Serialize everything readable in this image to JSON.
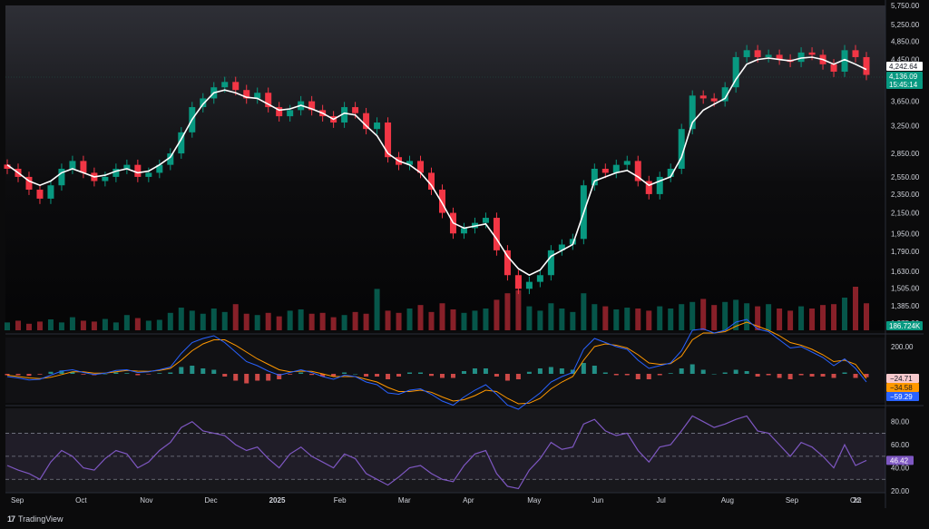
{
  "chart_data": [
    {
      "panel": "price",
      "type": "candlestick",
      "x_labels": [
        "Sep",
        "Oct",
        "Nov",
        "Dec",
        "2025",
        "Feb",
        "Mar",
        "Apr",
        "May",
        "Jun",
        "Jul",
        "Aug",
        "Sep",
        "Oct",
        "22"
      ],
      "y_scale": "log",
      "y_ticks": [
        "5,750.00",
        "5,250.00",
        "4,850.00",
        "4,450.00",
        "3,650.00",
        "3,250.00",
        "2,850.00",
        "2,550.00",
        "2,350.00",
        "2,150.00",
        "1,950.00",
        "1,790.00",
        "1,630.00",
        "1,505.00",
        "1,385.00",
        "1,275.00"
      ],
      "close_series": [
        2650,
        2550,
        2400,
        2300,
        2450,
        2650,
        2750,
        2600,
        2500,
        2550,
        2650,
        2700,
        2550,
        2600,
        2700,
        2850,
        3150,
        3550,
        3700,
        3900,
        4000,
        3850,
        3700,
        3800,
        3550,
        3400,
        3500,
        3650,
        3500,
        3400,
        3300,
        3550,
        3450,
        3200,
        3300,
        2800,
        2700,
        2750,
        2600,
        2400,
        2150,
        1950,
        2000,
        2050,
        2100,
        1800,
        1600,
        1500,
        1550,
        1600,
        1800,
        1850,
        1900,
        2450,
        2650,
        2600,
        2700,
        2750,
        2500,
        2350,
        2550,
        2650,
        3200,
        3750,
        3700,
        3650,
        3900,
        4500,
        4650,
        4500,
        4550,
        4450,
        4400,
        4600,
        4550,
        4350,
        4200,
        4650,
        4500,
        4136.09
      ],
      "moving_average": [
        2700,
        2600,
        2500,
        2450,
        2500,
        2600,
        2650,
        2600,
        2550,
        2570,
        2620,
        2650,
        2600,
        2620,
        2700,
        2800,
        3050,
        3350,
        3600,
        3800,
        3850,
        3800,
        3720,
        3700,
        3600,
        3500,
        3520,
        3580,
        3520,
        3450,
        3350,
        3450,
        3420,
        3250,
        3100,
        2850,
        2750,
        2700,
        2600,
        2450,
        2250,
        2050,
        2000,
        2020,
        2040,
        1900,
        1750,
        1650,
        1600,
        1640,
        1750,
        1800,
        1850,
        2150,
        2500,
        2550,
        2600,
        2630,
        2550,
        2450,
        2500,
        2550,
        2800,
        3300,
        3500,
        3600,
        3700,
        4050,
        4350,
        4450,
        4480,
        4450,
        4420,
        4480,
        4500,
        4450,
        4350,
        4450,
        4350,
        4242.64
      ],
      "volume_relative": [
        0.18,
        0.22,
        0.15,
        0.2,
        0.25,
        0.18,
        0.3,
        0.22,
        0.2,
        0.26,
        0.18,
        0.35,
        0.28,
        0.22,
        0.24,
        0.4,
        0.52,
        0.45,
        0.38,
        0.5,
        0.42,
        0.6,
        0.38,
        0.35,
        0.4,
        0.32,
        0.45,
        0.48,
        0.38,
        0.4,
        0.3,
        0.35,
        0.42,
        0.38,
        0.95,
        0.45,
        0.4,
        0.5,
        0.58,
        0.42,
        0.62,
        0.48,
        0.4,
        0.45,
        0.5,
        0.7,
        0.85,
        0.92,
        0.55,
        0.45,
        0.62,
        0.5,
        0.42,
        0.85,
        0.6,
        0.55,
        0.48,
        0.52,
        0.5,
        0.45,
        0.55,
        0.5,
        0.6,
        0.65,
        0.72,
        0.58,
        0.65,
        0.7,
        0.62,
        0.55,
        0.6,
        0.5,
        0.45,
        0.55,
        0.5,
        0.58,
        0.6,
        0.75,
        1.0,
        0.62
      ],
      "price_tags": [
        {
          "text": "4,242.64",
          "color": "#ffffff",
          "text_color": "#131722",
          "value": 4242.64
        },
        {
          "text": "4,136.09",
          "color": "#089981",
          "text_color": "#ffffff",
          "value": 4136.09
        },
        {
          "text": "15:45:14",
          "color": "#089981",
          "text_color": "#ffffff",
          "value": 3980
        }
      ],
      "volume_tag": {
        "text": "186.724K",
        "color": "#089981"
      },
      "colors": {
        "up": "#089981",
        "down": "#f23645",
        "ma": "#ffffff"
      }
    },
    {
      "panel": "macd",
      "type": "macd",
      "y_ticks": [
        "200.00"
      ],
      "tags": [
        {
          "text": "−24.71",
          "color": "#f7c9cd",
          "text_color": "#131722"
        },
        {
          "text": "−34.58",
          "color": "#ff9800",
          "text_color": "#131722"
        },
        {
          "text": "−59.29",
          "color": "#2962ff",
          "text_color": "#ffffff"
        }
      ],
      "macd_line": [
        -20,
        -30,
        -45,
        -40,
        -10,
        20,
        30,
        10,
        -5,
        5,
        25,
        30,
        10,
        15,
        30,
        50,
        150,
        230,
        260,
        280,
        230,
        160,
        90,
        60,
        20,
        -10,
        10,
        30,
        10,
        -20,
        -40,
        -10,
        -20,
        -60,
        -80,
        -140,
        -150,
        -120,
        -110,
        -150,
        -200,
        -230,
        -170,
        -120,
        -80,
        -150,
        -230,
        -260,
        -200,
        -140,
        -60,
        -20,
        10,
        180,
        260,
        230,
        200,
        180,
        100,
        40,
        60,
        80,
        170,
        320,
        330,
        300,
        320,
        380,
        400,
        330,
        310,
        250,
        190,
        200,
        160,
        120,
        60,
        110,
        40,
        -59.29
      ],
      "signal_line": [
        -10,
        -20,
        -30,
        -35,
        -25,
        -5,
        15,
        15,
        5,
        5,
        15,
        25,
        20,
        18,
        25,
        40,
        100,
        170,
        220,
        250,
        250,
        210,
        160,
        110,
        70,
        30,
        15,
        20,
        18,
        0,
        -20,
        -20,
        -20,
        -40,
        -60,
        -100,
        -130,
        -130,
        -120,
        -135,
        -170,
        -200,
        -190,
        -160,
        -120,
        -130,
        -180,
        -220,
        -215,
        -180,
        -110,
        -60,
        -20,
        100,
        200,
        220,
        210,
        190,
        140,
        80,
        70,
        75,
        130,
        250,
        300,
        300,
        310,
        350,
        380,
        350,
        320,
        280,
        230,
        210,
        180,
        140,
        90,
        100,
        70,
        -34.58
      ],
      "histogram": [
        -10,
        -10,
        -15,
        -5,
        15,
        25,
        15,
        -5,
        -10,
        0,
        10,
        5,
        -10,
        -3,
        5,
        10,
        50,
        60,
        40,
        30,
        -20,
        -50,
        -70,
        -50,
        -50,
        -40,
        -5,
        10,
        -8,
        -20,
        -20,
        10,
        0,
        -20,
        -20,
        -40,
        -20,
        10,
        10,
        -15,
        -30,
        -30,
        20,
        40,
        40,
        -20,
        -50,
        -40,
        15,
        40,
        50,
        40,
        30,
        80,
        60,
        10,
        -10,
        -10,
        -40,
        -40,
        -10,
        5,
        40,
        70,
        30,
        0,
        10,
        30,
        20,
        -20,
        -10,
        -30,
        -40,
        -10,
        -20,
        -20,
        -30,
        10,
        -30,
        -24.71
      ]
    },
    {
      "panel": "rsi",
      "type": "line",
      "y_ticks": [
        "80.00",
        "60.00",
        "40.00",
        "20.00"
      ],
      "ylim": [
        20,
        90
      ],
      "bands": [
        70,
        50,
        30
      ],
      "tag": {
        "text": "46.42",
        "color": "#7e57c2"
      },
      "values": [
        42,
        38,
        35,
        30,
        45,
        55,
        50,
        40,
        38,
        48,
        55,
        52,
        40,
        45,
        55,
        62,
        75,
        80,
        72,
        70,
        68,
        60,
        55,
        58,
        48,
        40,
        52,
        58,
        50,
        45,
        40,
        52,
        48,
        35,
        30,
        25,
        32,
        40,
        42,
        35,
        30,
        28,
        42,
        52,
        55,
        35,
        24,
        22,
        38,
        48,
        62,
        56,
        58,
        78,
        82,
        72,
        68,
        70,
        55,
        45,
        58,
        60,
        72,
        85,
        80,
        75,
        78,
        82,
        85,
        72,
        70,
        60,
        50,
        62,
        58,
        50,
        40,
        60,
        42,
        46.42
      ],
      "color": "#7e57c2"
    }
  ],
  "branding": {
    "label": "TradingView"
  }
}
